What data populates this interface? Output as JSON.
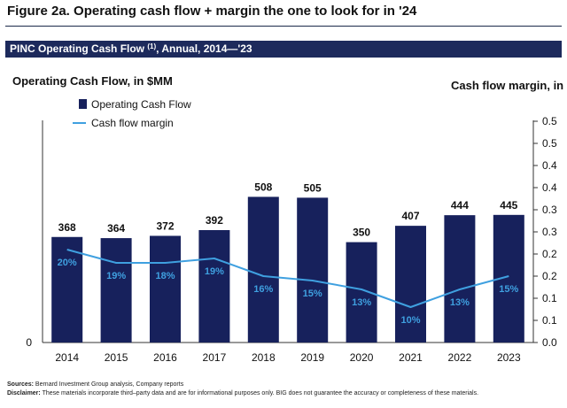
{
  "figure": {
    "title": "Figure 2a. Operating cash flow + margin the one to look for in '24",
    "banner_main": "PINC Operating Cash Flow ",
    "banner_sup": "(1)",
    "banner_suffix": ", Annual, 2014—'23"
  },
  "colors": {
    "bar": "#17215c",
    "line": "#3fa0e0",
    "banner": "#1d2a5c"
  },
  "chart_data": {
    "type": "bar+line",
    "left_axis_title": "Operating Cash Flow, in $MM",
    "right_axis_title": "Cash flow margin, in %",
    "categories": [
      "2014",
      "2015",
      "2016",
      "2017",
      "2018",
      "2019",
      "2020",
      "2021",
      "2022",
      "2023"
    ],
    "series": [
      {
        "name": "Operating Cash Flow",
        "type": "bar",
        "axis": "left",
        "values": [
          368,
          364,
          372,
          392,
          508,
          505,
          350,
          407,
          444,
          445
        ],
        "labels": [
          "368",
          "364",
          "372",
          "392",
          "508",
          "505",
          "350",
          "407",
          "444",
          "445"
        ]
      },
      {
        "name": "Cash flow margin",
        "type": "line",
        "axis": "right",
        "values": [
          0.2,
          0.19,
          0.18,
          0.19,
          0.16,
          0.15,
          0.13,
          0.1,
          0.13,
          0.15
        ],
        "line_values": [
          0.21,
          0.18,
          0.18,
          0.19,
          0.15,
          0.14,
          0.12,
          0.08,
          0.12,
          0.15
        ],
        "labels": [
          "20%",
          "19%",
          "18%",
          "19%",
          "16%",
          "15%",
          "13%",
          "10%",
          "13%",
          "15%"
        ]
      }
    ],
    "left_ylim": [
      0,
      800
    ],
    "left_ticks": [
      "0"
    ],
    "right_ylim": [
      0,
      0.5
    ],
    "right_ticks": [
      "0.0",
      "0.1",
      "0.1",
      "0.2",
      "0.2",
      "0.3",
      "0.3",
      "0.4",
      "0.4",
      "0.5",
      "0.5"
    ],
    "legend": {
      "position": "top-left",
      "bar_label": "Operating Cash Flow",
      "line_label": "Cash flow margin"
    },
    "grid": false
  },
  "footer": {
    "sources_label": "Sources:",
    "sources_text": " Bernard Investment Group analysis, Company reports",
    "disclaimer_label": "Disclaimer:",
    "disclaimer_text": " These materials incorporate third–party data and are for informational purposes only. BIG does not guarantee the accuracy or completeness of these materials."
  }
}
